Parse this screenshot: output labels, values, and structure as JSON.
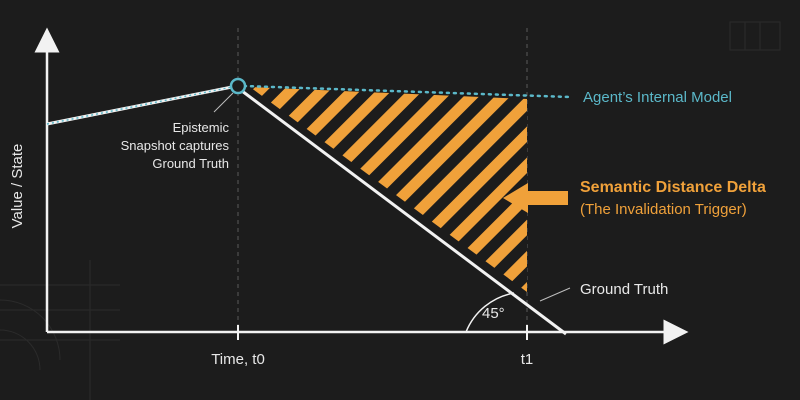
{
  "diagram": {
    "y_axis_label": "Value / State",
    "x_tick_t0": "Time, t0",
    "x_tick_t1": "t1",
    "snapshot_note": [
      "Epistemic",
      "Snapshot captures",
      "Ground Truth"
    ],
    "agent_model_label": "Agent’s Internal Model",
    "delta_title": "Semantic Distance Delta",
    "delta_subtitle": "(The Invalidation Trigger)",
    "ground_truth_label": "Ground Truth",
    "angle_label": "45°"
  },
  "colors": {
    "background": "#1c1c1c",
    "text": "#e8e8e8",
    "agent_teal": "#5bb8c9",
    "delta_orange": "#f0a13a",
    "ground_truth_line": "#f2f2f2"
  }
}
